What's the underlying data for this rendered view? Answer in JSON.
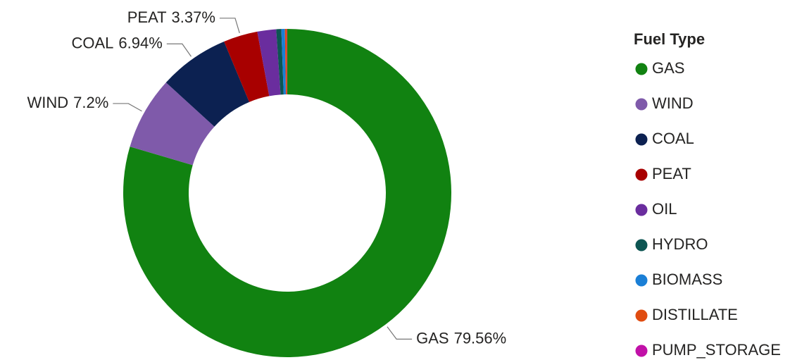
{
  "chart_data": {
    "type": "donut",
    "legend_title": "Fuel Type",
    "legend_position": "right",
    "categories": [
      "GAS",
      "WIND",
      "COAL",
      "PEAT",
      "OIL",
      "HYDRO",
      "BIOMASS",
      "DISTILLATE",
      "PUMP_STORAGE"
    ],
    "values": [
      79.56,
      7.2,
      6.94,
      3.37,
      1.85,
      0.5,
      0.35,
      0.2,
      0.03
    ],
    "value_labels": [
      "79.56%",
      "7.2%",
      "6.94%",
      "3.37%",
      null,
      null,
      null,
      null,
      null
    ],
    "colors": [
      "#118211",
      "#7f5aaa",
      "#0c2151",
      "#a80000",
      "#6a2d9e",
      "#0d5552",
      "#1a7fd6",
      "#e04c10",
      "#c111a8"
    ]
  }
}
